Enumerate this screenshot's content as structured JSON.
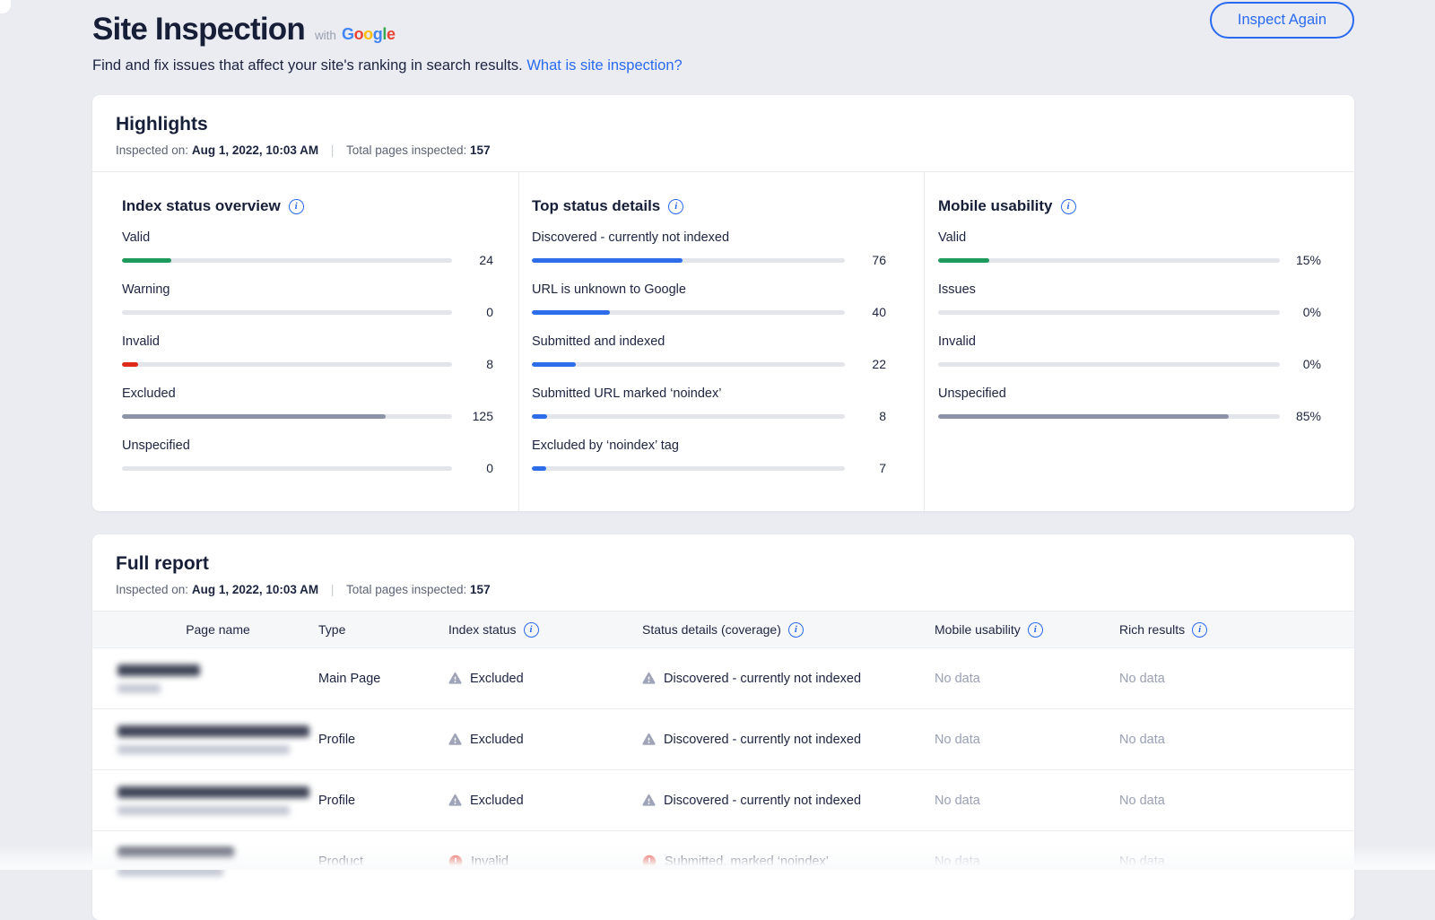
{
  "page": {
    "title": "Site Inspection",
    "with_label": "with",
    "google_logo": [
      {
        "ch": "G",
        "color": "#4285F4"
      },
      {
        "ch": "o",
        "color": "#EA4335"
      },
      {
        "ch": "o",
        "color": "#FBBC05"
      },
      {
        "ch": "g",
        "color": "#4285F4"
      },
      {
        "ch": "l",
        "color": "#34A853"
      },
      {
        "ch": "e",
        "color": "#EA4335"
      }
    ],
    "subtitle": "Find and fix issues that affect your site's ranking in search results.",
    "subtitle_link": "What is site inspection?",
    "inspect_again_label": "Inspect Again"
  },
  "highlights": {
    "title": "Highlights",
    "meta": {
      "inspected_on_label": "Inspected on:",
      "inspected_on_value": "Aug 1, 2022, 10:03 AM",
      "separator": "|",
      "total_label": "Total pages inspected:",
      "total_value": "157"
    },
    "columns": [
      {
        "title": "Index status overview",
        "items": [
          {
            "label": "Valid",
            "value": "24",
            "percent": 15,
            "color": "#1e9a5c"
          },
          {
            "label": "Warning",
            "value": "0",
            "percent": 0,
            "color": "#f5a623"
          },
          {
            "label": "Invalid",
            "value": "8",
            "percent": 5,
            "color": "#dd2a1b"
          },
          {
            "label": "Excluded",
            "value": "125",
            "percent": 80,
            "color": "#8d93a7"
          },
          {
            "label": "Unspecified",
            "value": "0",
            "percent": 0,
            "color": "#8d93a7"
          }
        ]
      },
      {
        "title": "Top status details",
        "items": [
          {
            "label": "Discovered - currently not indexed",
            "value": "76",
            "percent": 48,
            "color": "#2e6de9"
          },
          {
            "label": "URL is unknown to Google",
            "value": "40",
            "percent": 25,
            "color": "#2e6de9"
          },
          {
            "label": "Submitted and indexed",
            "value": "22",
            "percent": 14,
            "color": "#2e6de9"
          },
          {
            "label": "Submitted URL marked ‘noindex’",
            "value": "8",
            "percent": 5,
            "color": "#2e6de9"
          },
          {
            "label": "Excluded by ‘noindex’ tag",
            "value": "7",
            "percent": 4.5,
            "color": "#2e6de9"
          }
        ]
      },
      {
        "title": "Mobile usability",
        "items": [
          {
            "label": "Valid",
            "value": "15%",
            "percent": 15,
            "color": "#1e9a5c"
          },
          {
            "label": "Issues",
            "value": "0%",
            "percent": 0,
            "color": "#f5a623"
          },
          {
            "label": "Invalid",
            "value": "0%",
            "percent": 0,
            "color": "#dd2a1b"
          },
          {
            "label": "Unspecified",
            "value": "85%",
            "percent": 85,
            "color": "#8d93a7"
          }
        ]
      }
    ]
  },
  "full_report": {
    "title": "Full report",
    "meta": {
      "inspected_on_label": "Inspected on:",
      "inspected_on_value": "Aug 1, 2022, 10:03 AM",
      "separator": "|",
      "total_label": "Total pages inspected:",
      "total_value": "157"
    },
    "table": {
      "headers": [
        {
          "label": "Page name",
          "info": false
        },
        {
          "label": "Type",
          "info": false
        },
        {
          "label": "Index status",
          "info": true
        },
        {
          "label": "Status details (coverage)",
          "info": true
        },
        {
          "label": "Mobile usability",
          "info": true
        },
        {
          "label": "Rich results",
          "info": true
        }
      ],
      "rows": [
        {
          "page_redacted": {
            "title_width": 92,
            "subtitle_width": 48
          },
          "type": "Main Page",
          "index_status": {
            "icon": "warning",
            "label": "Excluded"
          },
          "status_details": {
            "icon": "warning",
            "label": "Discovered - currently not indexed"
          },
          "mobile_usability": "No data",
          "rich_results": "No data"
        },
        {
          "page_redacted": {
            "title_width": 214,
            "subtitle_width": 192
          },
          "type": "Profile",
          "index_status": {
            "icon": "warning",
            "label": "Excluded"
          },
          "status_details": {
            "icon": "warning",
            "label": "Discovered - currently not indexed"
          },
          "mobile_usability": "No data",
          "rich_results": "No data"
        },
        {
          "page_redacted": {
            "title_width": 214,
            "subtitle_width": 192
          },
          "type": "Profile",
          "index_status": {
            "icon": "warning",
            "label": "Excluded"
          },
          "status_details": {
            "icon": "warning",
            "label": "Discovered - currently not indexed"
          },
          "mobile_usability": "No data",
          "rich_results": "No data"
        },
        {
          "page_redacted": {
            "title_width": 130,
            "subtitle_width": 118
          },
          "type": "Product",
          "index_status": {
            "icon": "error",
            "label": "Invalid"
          },
          "status_details": {
            "icon": "error",
            "label": "Submitted, marked ‘noindex’"
          },
          "mobile_usability": "No data",
          "rich_results": "No data"
        }
      ]
    }
  },
  "colors": {
    "accent_blue": "#2a6af0",
    "valid_green": "#1e9a5c",
    "invalid_red": "#dd2a1b",
    "neutral_bar_gray": "#8d93a7",
    "detail_bar_blue": "#2e6de9",
    "no_data_gray": "#9aa0b4",
    "warning_icon_gray": "#9fa4b8"
  }
}
